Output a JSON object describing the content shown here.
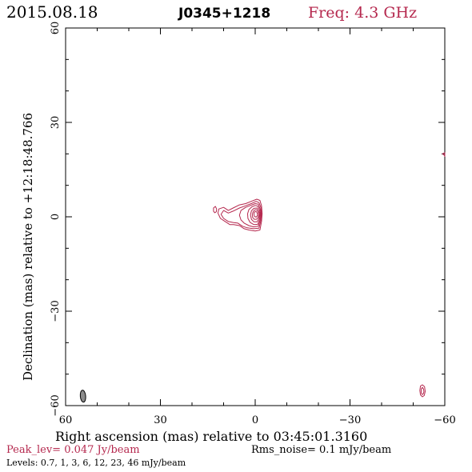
{
  "header": {
    "date": "2015.08.18",
    "source": "J0345+1218",
    "freq": "Freq: 4.3 GHz"
  },
  "footer": {
    "peak": "Peak_lev=  0.047 Jy/beam",
    "rms": "Rms_noise=   0.1 mJy/beam",
    "levels": "Levels: 0.7,    1,    3,    6,   12,   23,   46 mJy/beam"
  },
  "colors": {
    "contour": "#b5284e",
    "axis": "#000000",
    "beam_fill": "#8c8c8c",
    "peak_text": "#b5284e"
  },
  "chart_data": {
    "type": "contour",
    "title": "J0345+1218",
    "xlabel": "Right ascension (mas) relative to 03:45:01.3160",
    "ylabel": "Declination (mas) relative to +12:18:48.766",
    "xlim": [
      60,
      -60
    ],
    "ylim": [
      -60,
      60
    ],
    "xticks": [
      60,
      30,
      0,
      -30,
      -60
    ],
    "yticks": [
      -60,
      -30,
      0,
      30,
      60
    ],
    "xtick_labels": [
      "60",
      "30",
      "0",
      "−30",
      "−60"
    ],
    "ytick_labels": [
      "−60",
      "−30",
      "0",
      "30",
      "60"
    ],
    "levels_mJy": [
      0.7,
      1,
      3,
      6,
      12,
      23,
      46
    ],
    "peak_Jy_per_beam": 0.047,
    "rms_mJy_per_beam": 0.1,
    "core": {
      "x": -0.8,
      "y": 1.0
    },
    "contours": [
      {
        "level": 0.7,
        "points": [
          [
            -1.5,
            5.2
          ],
          [
            -2.0,
            3.5
          ],
          [
            -2.2,
            1.0
          ],
          [
            -2.0,
            -1.5
          ],
          [
            -1.5,
            -4.2
          ],
          [
            0,
            -4.5
          ],
          [
            2,
            -4.2
          ],
          [
            3.5,
            -3.8
          ],
          [
            5,
            -2.8
          ],
          [
            6.8,
            -2.5
          ],
          [
            8,
            -2.5
          ],
          [
            9.5,
            -1.5
          ],
          [
            11,
            -0.5
          ],
          [
            11.8,
            1.2
          ],
          [
            11.5,
            2.5
          ],
          [
            10,
            3.0
          ],
          [
            8.5,
            2.0
          ],
          [
            7,
            2.8
          ],
          [
            5,
            3.8
          ],
          [
            3,
            4.2
          ],
          [
            1,
            5.0
          ],
          [
            -0.5,
            5.6
          ]
        ]
      },
      {
        "level": 1,
        "points": [
          [
            -1.2,
            4.5
          ],
          [
            -1.8,
            3.0
          ],
          [
            -2.0,
            1.0
          ],
          [
            -1.8,
            -1.2
          ],
          [
            -1.2,
            -3.6
          ],
          [
            0.5,
            -3.8
          ],
          [
            2.5,
            -3.5
          ],
          [
            4,
            -3.0
          ],
          [
            5.5,
            -2.0
          ],
          [
            7,
            -1.8
          ],
          [
            8.5,
            -1.5
          ],
          [
            10,
            -0.5
          ],
          [
            10.8,
            0.8
          ],
          [
            10,
            2.0
          ],
          [
            8.5,
            1.2
          ],
          [
            7,
            1.8
          ],
          [
            5,
            2.8
          ],
          [
            3,
            3.5
          ],
          [
            1,
            4.3
          ],
          [
            -0.3,
            4.9
          ]
        ]
      },
      {
        "level": 3,
        "points": [
          [
            -1.0,
            4.0
          ],
          [
            -1.6,
            2.5
          ],
          [
            -1.8,
            1.0
          ],
          [
            -1.6,
            -1.0
          ],
          [
            -1.0,
            -3.0
          ],
          [
            0.5,
            -3.2
          ],
          [
            2,
            -2.8
          ],
          [
            3.5,
            -2.0
          ],
          [
            4.5,
            -1.0
          ],
          [
            5,
            0.5
          ],
          [
            4.5,
            2.0
          ],
          [
            3,
            3.0
          ],
          [
            1.5,
            3.6
          ],
          [
            0,
            4.2
          ]
        ]
      },
      {
        "level": 6,
        "points": [
          [
            -0.8,
            3.4
          ],
          [
            -1.4,
            2.2
          ],
          [
            -1.6,
            1.0
          ],
          [
            -1.4,
            -0.8
          ],
          [
            -0.8,
            -2.4
          ],
          [
            0.4,
            -2.5
          ],
          [
            1.6,
            -1.8
          ],
          [
            2.3,
            -0.5
          ],
          [
            2.4,
            1.0
          ],
          [
            2.0,
            2.3
          ],
          [
            1.0,
            3.2
          ],
          [
            0,
            3.6
          ]
        ]
      },
      {
        "level": 12,
        "points": [
          [
            -0.6,
            2.8
          ],
          [
            -1.2,
            1.8
          ],
          [
            -1.4,
            0.8
          ],
          [
            -1.2,
            -0.4
          ],
          [
            -0.6,
            -1.6
          ],
          [
            0.4,
            -1.6
          ],
          [
            1.2,
            -0.8
          ],
          [
            1.5,
            0.6
          ],
          [
            1.2,
            1.9
          ],
          [
            0.4,
            2.7
          ]
        ]
      },
      {
        "level": 23,
        "points": [
          [
            -0.5,
            2.2
          ],
          [
            -1.0,
            1.4
          ],
          [
            -1.1,
            0.6
          ],
          [
            -0.9,
            -0.2
          ],
          [
            -0.4,
            -0.8
          ],
          [
            0.3,
            -0.8
          ],
          [
            0.8,
            -0.2
          ],
          [
            0.9,
            0.8
          ],
          [
            0.6,
            1.7
          ],
          [
            0.1,
            2.2
          ]
        ]
      },
      {
        "level": 46,
        "points": [
          [
            -0.4,
            1.6
          ],
          [
            -0.7,
            1.0
          ],
          [
            -0.7,
            0.4
          ],
          [
            -0.3,
            -0.1
          ],
          [
            0.2,
            0.1
          ],
          [
            0.4,
            0.7
          ],
          [
            0.3,
            1.3
          ],
          [
            0,
            1.7
          ]
        ]
      },
      {
        "level": 0.7,
        "points": [
          [
            12.6,
            3.3
          ],
          [
            12.2,
            2.5
          ],
          [
            12.3,
            1.6
          ],
          [
            12.8,
            1.3
          ],
          [
            13.2,
            1.8
          ],
          [
            13.2,
            2.8
          ]
        ]
      },
      {
        "level": 0.7,
        "points": [
          [
            -52.9,
            -53.4
          ],
          [
            -53.6,
            -54.0
          ],
          [
            -53.8,
            -55.5
          ],
          [
            -53.5,
            -56.8
          ],
          [
            -52.9,
            -57.2
          ],
          [
            -52.3,
            -56.6
          ],
          [
            -52.1,
            -55.2
          ],
          [
            -52.3,
            -53.8
          ]
        ]
      },
      {
        "level": 1,
        "points": [
          [
            -52.9,
            -54.2
          ],
          [
            -53.3,
            -54.8
          ],
          [
            -53.4,
            -55.6
          ],
          [
            -53.2,
            -56.3
          ],
          [
            -52.9,
            -56.5
          ],
          [
            -52.6,
            -56.1
          ],
          [
            -52.5,
            -55.3
          ],
          [
            -52.6,
            -54.6
          ]
        ]
      },
      {
        "level": 0.7,
        "points": [
          [
            -59.3,
            20.0
          ],
          [
            -59.8,
            19.6
          ],
          [
            -60.0,
            19.2
          ],
          [
            -60.0,
            20.4
          ],
          [
            -59.8,
            20.3
          ]
        ]
      }
    ],
    "beam": {
      "x": 54.5,
      "y": -57,
      "major_mas": 3.8,
      "minor_mas": 1.7,
      "pa_deg": -5
    }
  }
}
